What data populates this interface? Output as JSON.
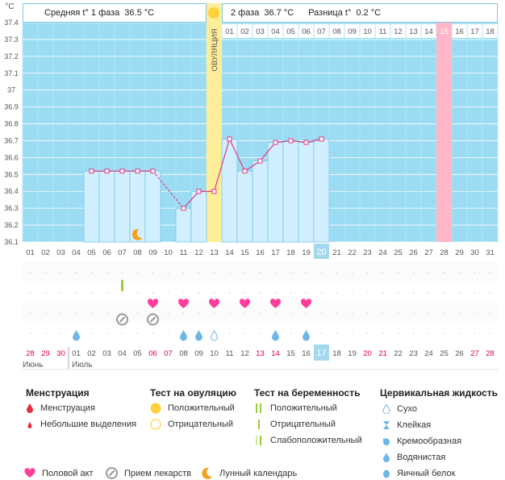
{
  "header": {
    "unit_label": "°C",
    "phase1_label": "Средняя t° 1 фаза",
    "phase1_value": "36.5 °C",
    "phase2_label": "2 фаза",
    "phase2_value": "36.7 °C",
    "diff_label": "Разница t°",
    "diff_value": "0.2 °C"
  },
  "colors": {
    "plot_bg": "#9bdcf3",
    "bar_fill": "#d2efff",
    "bar_edge": "#76c4e8",
    "line": "#dd3a85",
    "ovulation": "#ffee99",
    "highlight": "#ffb6c9",
    "today": "#a4d8ef",
    "weekend": "#e0003c",
    "heart": "#ff3d9a",
    "pill": "#999999",
    "moon": "#f4a01a",
    "drop": "#6cb7e8",
    "sun": "#ffd23c",
    "test": "#99cc33",
    "red_drop": "#e2313a"
  },
  "chart_data": {
    "type": "line",
    "title": "",
    "ylabel": "°C",
    "ylim": [
      36.1,
      37.4
    ],
    "yticks": [
      "36.1",
      "36.2",
      "36.3",
      "36.4",
      "36.5",
      "36.6",
      "36.7",
      "36.8",
      "36.9",
      "37",
      "37.1",
      "37.2",
      "37.3",
      "37.4"
    ],
    "dates": [
      "01",
      "02",
      "03",
      "04",
      "05",
      "06",
      "07",
      "08",
      "09",
      "10",
      "11",
      "12",
      "13",
      "14",
      "15",
      "16",
      "17",
      "18",
      "19",
      "20",
      "21",
      "22",
      "23",
      "24",
      "25",
      "26",
      "27",
      "28",
      "29",
      "30",
      "31"
    ],
    "cycle_days": [
      "28",
      "29",
      "30",
      "01",
      "02",
      "03",
      "04",
      "05",
      "06",
      "07",
      "08",
      "09",
      "10",
      "11",
      "12",
      "13",
      "14",
      "15",
      "16",
      "17",
      "18",
      "19",
      "20",
      "21",
      "22",
      "23",
      "24",
      "25",
      "26",
      "27",
      "28"
    ],
    "cycle_days_red": [
      "29",
      "30",
      "06",
      "07",
      "13",
      "14",
      "20",
      "21",
      "27",
      "28"
    ],
    "month_labels": [
      "Июнь",
      "Июль"
    ],
    "today_date": "20",
    "today_cycle_day": "17",
    "ovulation_label": "ОВУЛЯЦИЯ",
    "ovulation_date": "13",
    "highlight_date": "28",
    "series": [
      {
        "points": [
          {
            "x": "05",
            "y": 36.52
          },
          {
            "x": "06",
            "y": 36.52
          },
          {
            "x": "07",
            "y": 36.52
          },
          {
            "x": "08",
            "y": 36.52
          },
          {
            "x": "09",
            "y": 36.52
          },
          {
            "x": "11",
            "y": 36.3
          },
          {
            "x": "12",
            "y": 36.4
          },
          {
            "x": "13",
            "y": 36.4
          },
          {
            "x": "14",
            "y": 36.71
          },
          {
            "x": "15",
            "y": 36.52
          },
          {
            "x": "16",
            "y": 36.58
          },
          {
            "x": "17",
            "y": 36.69
          },
          {
            "x": "18",
            "y": 36.7
          },
          {
            "x": "19",
            "y": 36.69
          },
          {
            "x": "20",
            "y": 36.71
          }
        ],
        "gaps": [
          [
            "09",
            "11"
          ]
        ]
      }
    ],
    "events": {
      "intercourse": [
        "09",
        "11",
        "13",
        "15",
        "17",
        "19"
      ],
      "medication": [
        "07",
        "09"
      ],
      "moon": [
        "08"
      ],
      "pregnancy_test_weak": [
        "07"
      ],
      "fluid_watery": [
        "04",
        "11",
        "12",
        "17",
        "19"
      ],
      "fluid_dry": [
        "13"
      ]
    }
  },
  "legend": {
    "menstruation": {
      "title": "Менструация",
      "items": [
        "Менструация",
        "Небольшие выделения"
      ]
    },
    "ovulation_test": {
      "title": "Тест на овуляцию",
      "items": [
        "Положительный",
        "Отрицательный"
      ]
    },
    "pregnancy_test": {
      "title": "Тест на беременность",
      "items": [
        "Положительный",
        "Отрицательный",
        "Слабоположительный"
      ]
    },
    "cervical_fluid": {
      "title": "Цервикальная жидкость",
      "items": [
        "Сухо",
        "Клейкая",
        "Кремообразная",
        "Водянистая",
        "Яичный белок"
      ]
    },
    "bottom": [
      "Половой акт",
      "Прием лекарств",
      "Лунный календарь"
    ]
  }
}
